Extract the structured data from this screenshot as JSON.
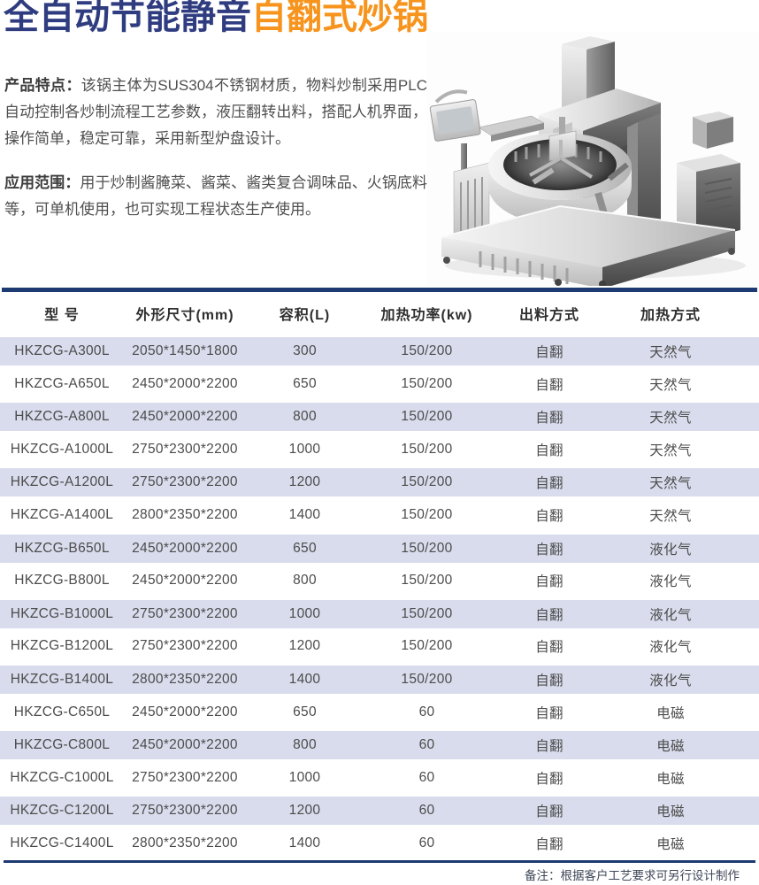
{
  "title": {
    "part1": "全自动节能静音",
    "part2": "自翻式炒锅"
  },
  "features": {
    "label": "产品特点：",
    "text": "该锅主体为SUS304不锈钢材质，物料炒制采用PLC自动控制各炒制流程工艺参数，液压翻转出料，搭配人机界面，操作简单，稳定可靠，采用新型炉盘设计。"
  },
  "scope": {
    "label": "应用范围：",
    "text": "用于炒制酱腌菜、酱菜、酱类复合调味品、火锅底料等，可单机使用，也可实现工程状态生产使用。"
  },
  "machine_image": {
    "description": "stainless-steel-self-tilting-cooking-kettle"
  },
  "table": {
    "columns": [
      "型 号",
      "外形尺寸(mm)",
      "容积(L)",
      "加热功率(kw)",
      "出料方式",
      "加热方式"
    ],
    "rows": [
      {
        "model": "HKZCG-A300L",
        "size": "2050*1450*1800",
        "volume": "300",
        "power": "150/200",
        "discharge": "自翻",
        "heating": "天然气"
      },
      {
        "model": "HKZCG-A650L",
        "size": "2450*2000*2200",
        "volume": "650",
        "power": "150/200",
        "discharge": "自翻",
        "heating": "天然气"
      },
      {
        "model": "HKZCG-A800L",
        "size": "2450*2000*2200",
        "volume": "800",
        "power": "150/200",
        "discharge": "自翻",
        "heating": "天然气"
      },
      {
        "model": "HKZCG-A1000L",
        "size": "2750*2300*2200",
        "volume": "1000",
        "power": "150/200",
        "discharge": "自翻",
        "heating": "天然气"
      },
      {
        "model": "HKZCG-A1200L",
        "size": "2750*2300*2200",
        "volume": "1200",
        "power": "150/200",
        "discharge": "自翻",
        "heating": "天然气"
      },
      {
        "model": "HKZCG-A1400L",
        "size": "2800*2350*2200",
        "volume": "1400",
        "power": "150/200",
        "discharge": "自翻",
        "heating": "天然气"
      },
      {
        "model": "HKZCG-B650L",
        "size": "2450*2000*2200",
        "volume": "650",
        "power": "150/200",
        "discharge": "自翻",
        "heating": "液化气"
      },
      {
        "model": "HKZCG-B800L",
        "size": "2450*2000*2200",
        "volume": "800",
        "power": "150/200",
        "discharge": "自翻",
        "heating": "液化气"
      },
      {
        "model": "HKZCG-B1000L",
        "size": "2750*2300*2200",
        "volume": "1000",
        "power": "150/200",
        "discharge": "自翻",
        "heating": "液化气"
      },
      {
        "model": "HKZCG-B1200L",
        "size": "2750*2300*2200",
        "volume": "1200",
        "power": "150/200",
        "discharge": "自翻",
        "heating": "液化气"
      },
      {
        "model": "HKZCG-B1400L",
        "size": "2800*2350*2200",
        "volume": "1400",
        "power": "150/200",
        "discharge": "自翻",
        "heating": "液化气"
      },
      {
        "model": "HKZCG-C650L",
        "size": "2450*2000*2200",
        "volume": "650",
        "power": "60",
        "discharge": "自翻",
        "heating": "电磁"
      },
      {
        "model": "HKZCG-C800L",
        "size": "2450*2000*2200",
        "volume": "800",
        "power": "60",
        "discharge": "自翻",
        "heating": "电磁"
      },
      {
        "model": "HKZCG-C1000L",
        "size": "2750*2300*2200",
        "volume": "1000",
        "power": "60",
        "discharge": "自翻",
        "heating": "电磁"
      },
      {
        "model": "HKZCG-C1200L",
        "size": "2750*2300*2200",
        "volume": "1200",
        "power": "60",
        "discharge": "自翻",
        "heating": "电磁"
      },
      {
        "model": "HKZCG-C1400L",
        "size": "2800*2350*2200",
        "volume": "1400",
        "power": "60",
        "discharge": "自翻",
        "heating": "电磁"
      }
    ]
  },
  "footer": {
    "note": "备注：根据客户工艺要求可另行设计制作"
  },
  "colors": {
    "title_navy": "#2f3d80",
    "title_orange": "#f7941d",
    "table_line_navy": "#1d3a73",
    "row_stripe": "#d9dcec"
  }
}
